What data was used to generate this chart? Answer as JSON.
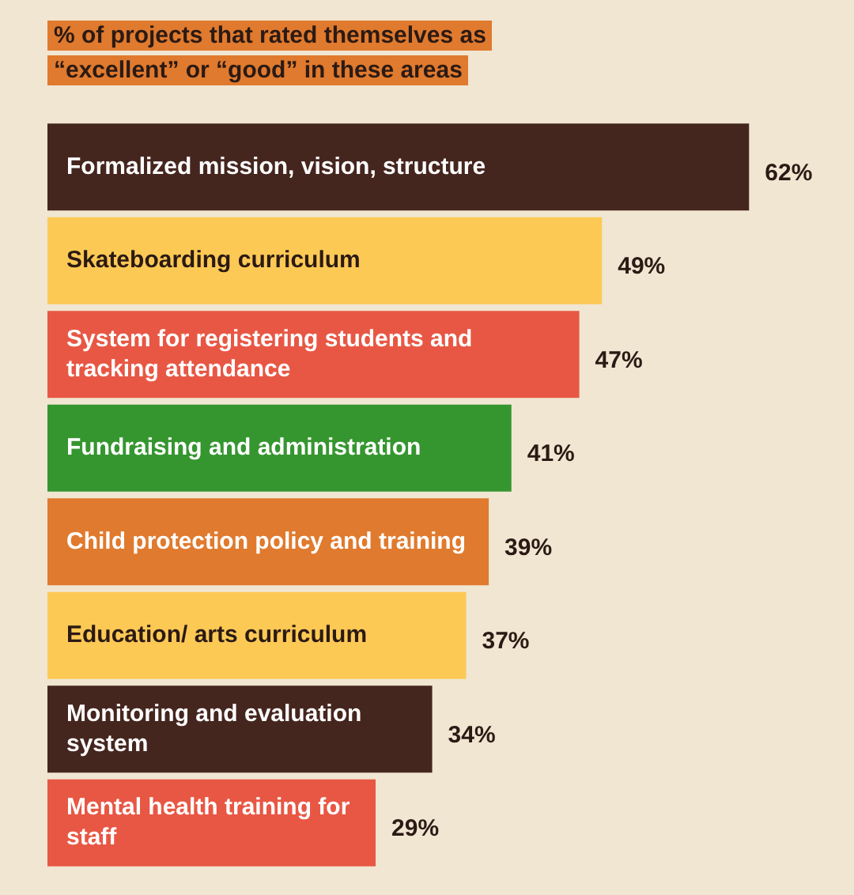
{
  "chart_data": {
    "type": "bar",
    "orientation": "horizontal",
    "title": "% of projects that rated themselves as “excellent” or “good” in these areas",
    "categories": [
      "Formalized mission, vision, structure",
      "Skateboarding curriculum",
      "System for registering students and tracking attendance",
      "Fundraising and administration",
      "Child protection policy and training",
      "Education/ arts curriculum",
      "Monitoring and evaluation system",
      "Mental health training for staff"
    ],
    "values": [
      62,
      49,
      47,
      41,
      39,
      37,
      34,
      29
    ],
    "colors": [
      "#45261f",
      "#fdc955",
      "#e85744",
      "#35962f",
      "#e07a2e",
      "#fdc955",
      "#45261f",
      "#e85744"
    ],
    "value_labels": [
      "62%",
      "49%",
      "47%",
      "41%",
      "39%",
      "37%",
      "34%",
      "29%"
    ]
  }
}
